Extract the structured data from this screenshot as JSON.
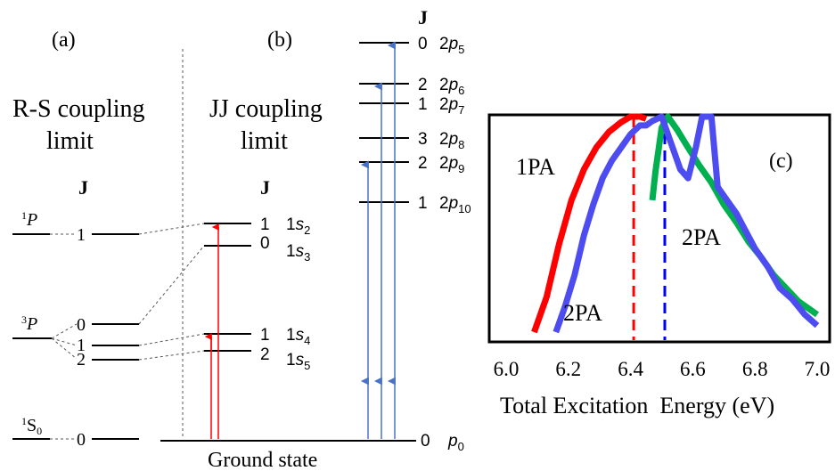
{
  "panels": {
    "a": {
      "label": "(a)",
      "title_line1": "R-S coupling",
      "title_line2": "limit",
      "j_header": "J",
      "terms": [
        {
          "sup": "1",
          "letter": "P",
          "sub": "",
          "js": [
            "1"
          ]
        },
        {
          "sup": "3",
          "letter": "P",
          "sub": "",
          "js": [
            "0",
            "1",
            "2"
          ]
        },
        {
          "sup": "1",
          "letter": "S",
          "sub": "0",
          "js": [
            "0"
          ]
        }
      ]
    },
    "b": {
      "label": "(b)",
      "title_line1": "JJ coupling",
      "title_line2": "limit",
      "j_header": "J",
      "levels": [
        {
          "j": "1",
          "name": "1",
          "letter": "s",
          "sub": "2"
        },
        {
          "j": "0",
          "name": "1",
          "letter": "s",
          "sub": "3"
        },
        {
          "j": "1",
          "name": "1",
          "letter": "s",
          "sub": "4"
        },
        {
          "j": "2",
          "name": "1",
          "letter": "s",
          "sub": "5"
        }
      ],
      "ground_label": "Ground state"
    },
    "p_levels": {
      "j_header": "J",
      "levels": [
        {
          "j": "0",
          "name": "2",
          "letter": "p",
          "sub": "5"
        },
        {
          "j": "2",
          "name": "2",
          "letter": "p",
          "sub": "6"
        },
        {
          "j": "1",
          "name": "2",
          "letter": "p",
          "sub": "7"
        },
        {
          "j": "3",
          "name": "2",
          "letter": "p",
          "sub": "8"
        },
        {
          "j": "2",
          "name": "2",
          "letter": "p",
          "sub": "9"
        },
        {
          "j": "1",
          "name": "2",
          "letter": "p",
          "sub": "10"
        }
      ],
      "ground": {
        "j": "0",
        "letter": "p",
        "sub": "0"
      }
    },
    "c": {
      "label": "(c)",
      "xlabel": "Total Excitation  Energy (eV)",
      "series_labels": [
        {
          "text": "1PA",
          "color": "#ff0000"
        },
        {
          "text": "2PA",
          "color": "#0000ff"
        },
        {
          "text": "2PA",
          "color": "#00b050"
        }
      ]
    }
  },
  "colors": {
    "red": "#ff0000",
    "blue": "#4a72c4",
    "chart_red": "#ff0000",
    "chart_blue": "#4c4cf0",
    "chart_green": "#00b050"
  },
  "chart_data": {
    "type": "line",
    "xlabel": "Total Excitation  Energy (eV)",
    "ylabel": "",
    "xlim": [
      6.0,
      7.0
    ],
    "x_ticks": [
      "6.0",
      "6.2",
      "6.4",
      "6.6",
      "6.8",
      "7.0"
    ],
    "series": [
      {
        "name": "1PA",
        "color": "#ff0000",
        "x": [
          6.09,
          6.13,
          6.17,
          6.21,
          6.25,
          6.29,
          6.33,
          6.37,
          6.4,
          6.43,
          6.45
        ],
        "y": [
          0.02,
          0.18,
          0.42,
          0.62,
          0.76,
          0.86,
          0.93,
          0.975,
          1.0,
          1.0,
          0.99
        ]
      },
      {
        "name": "2PA",
        "color": "#4c4cf0",
        "x": [
          6.16,
          6.19,
          6.22,
          6.25,
          6.28,
          6.31,
          6.34,
          6.37,
          6.4,
          6.43,
          6.45,
          6.47,
          6.5,
          6.53,
          6.56,
          6.585,
          6.61,
          6.63,
          6.66,
          6.68,
          6.71,
          6.74,
          6.77,
          6.8,
          6.84,
          6.88,
          6.92,
          6.96,
          7.0
        ],
        "y": [
          0.02,
          0.14,
          0.28,
          0.46,
          0.6,
          0.72,
          0.8,
          0.86,
          0.92,
          0.96,
          0.96,
          0.98,
          1.0,
          0.88,
          0.76,
          0.72,
          0.86,
          1.0,
          1.0,
          0.68,
          0.62,
          0.56,
          0.48,
          0.4,
          0.32,
          0.22,
          0.17,
          0.1,
          0.05
        ]
      },
      {
        "name": "2PA",
        "color": "#00b050",
        "x": [
          6.47,
          6.48,
          6.5,
          6.52,
          6.55,
          6.58,
          6.62,
          6.66,
          6.7,
          6.74,
          6.78,
          6.82,
          6.86,
          6.9,
          6.94,
          6.98,
          7.0
        ],
        "y": [
          0.62,
          0.75,
          0.95,
          1.0,
          0.94,
          0.87,
          0.78,
          0.7,
          0.6,
          0.52,
          0.43,
          0.36,
          0.28,
          0.22,
          0.16,
          0.12,
          0.1
        ]
      }
    ],
    "vlines": [
      {
        "x": 6.41,
        "color": "#ff0000",
        "style": "dashed"
      },
      {
        "x": 6.51,
        "color": "#0000ff",
        "style": "dashed"
      }
    ]
  }
}
